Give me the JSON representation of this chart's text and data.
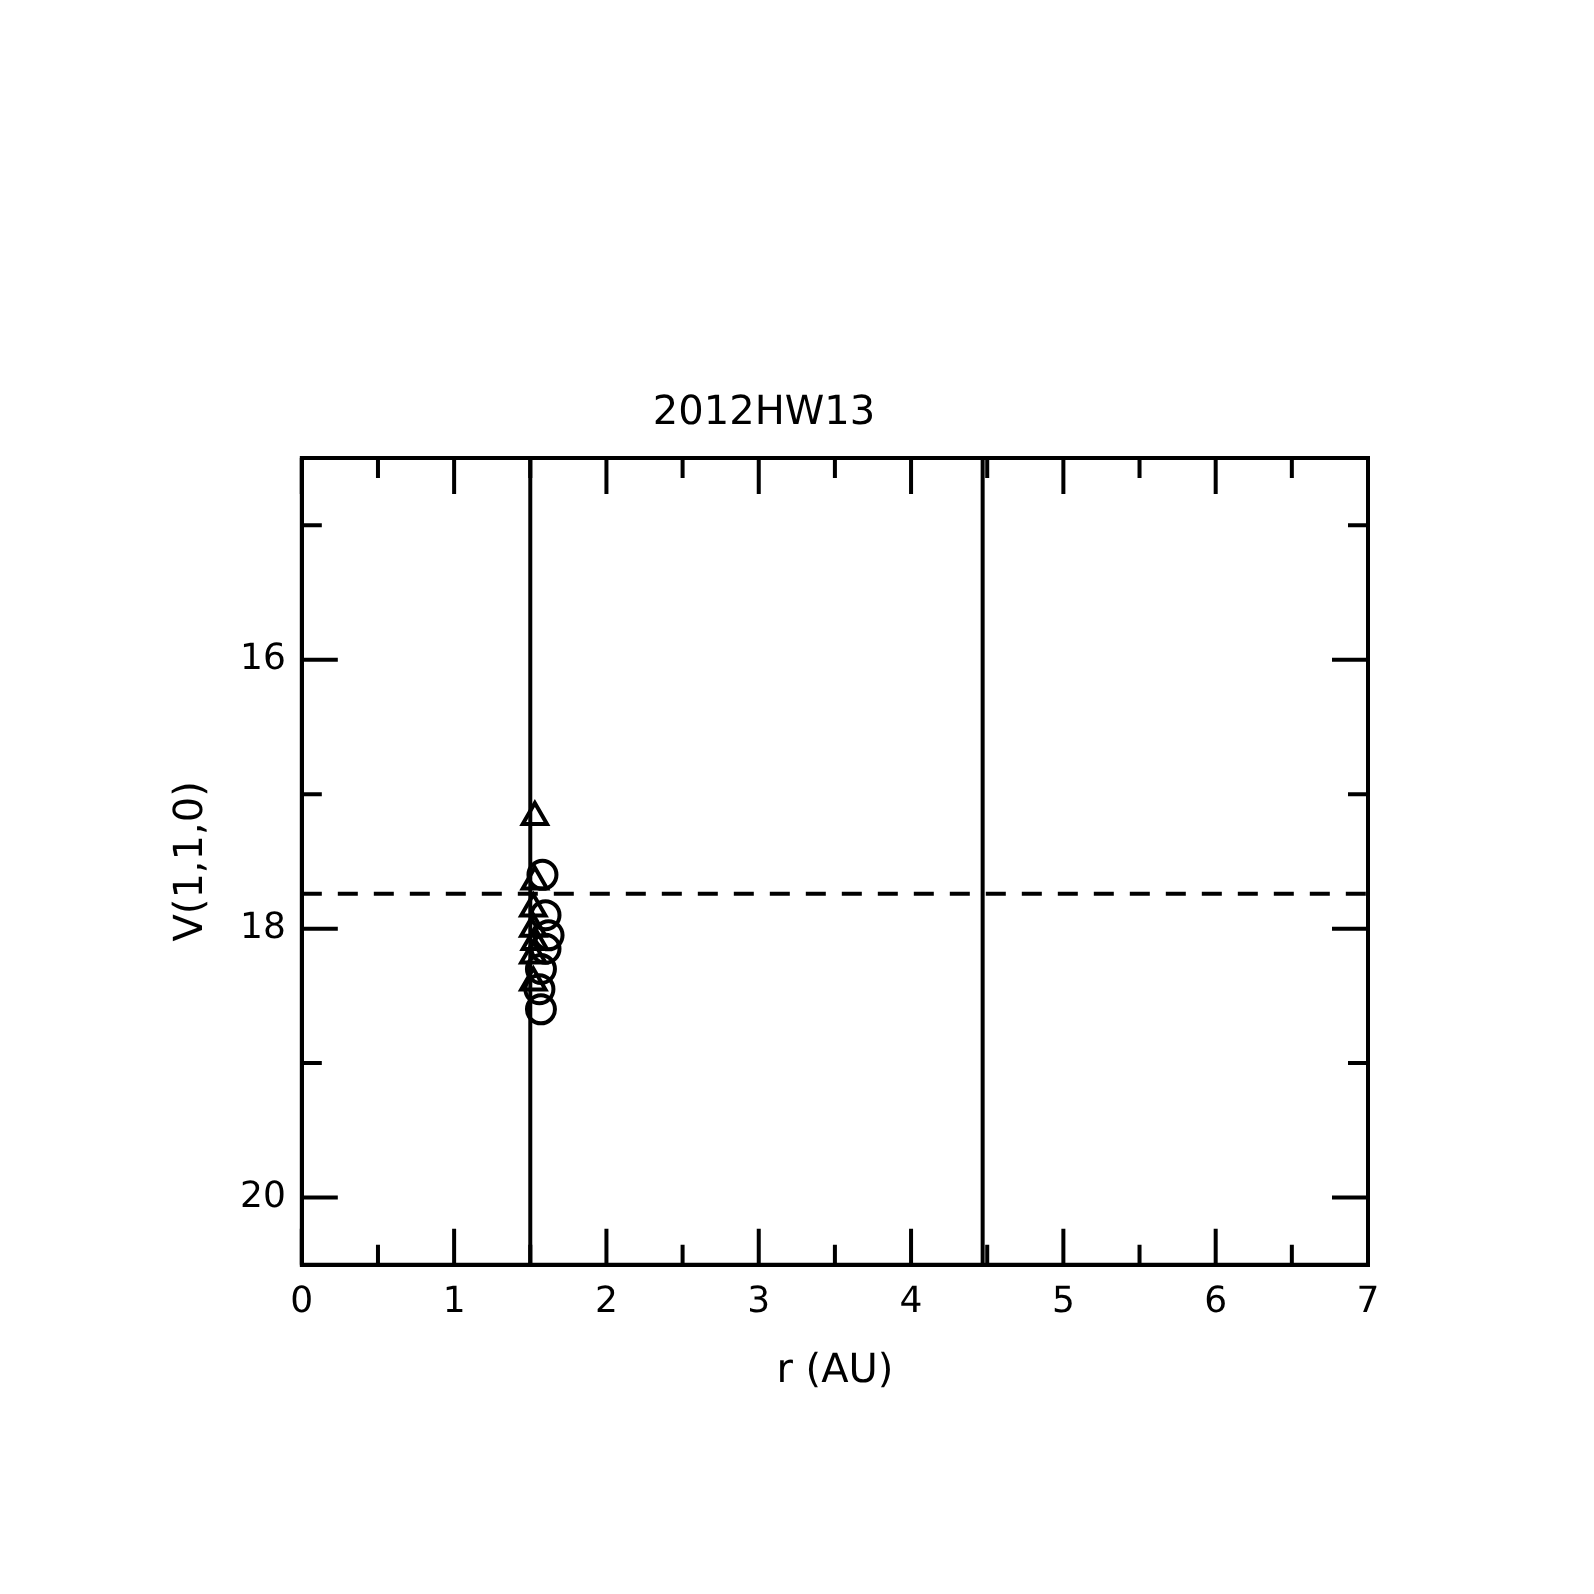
{
  "chart_data": {
    "type": "scatter",
    "title": "2012HW13",
    "xlabel": "r (AU)",
    "ylabel": "V(1,1,0)",
    "xlim": [
      0,
      7
    ],
    "xticks": [
      0,
      {
        "value": 0.5,
        "label": null
      },
      1,
      {
        "value": 1.5,
        "label": null
      },
      2,
      {
        "value": 2.5,
        "label": null
      },
      3,
      {
        "value": 3.5,
        "label": null
      },
      4,
      {
        "value": 4.5,
        "label": null
      },
      5,
      {
        "value": 5.5,
        "label": null
      },
      6,
      {
        "value": 6.5,
        "label": null
      },
      7
    ],
    "ylim": [
      20.5,
      14.5
    ],
    "yticks": [
      {
        "value": 15,
        "label": null
      },
      16,
      {
        "value": 17,
        "label": null
      },
      18,
      {
        "value": 19,
        "label": null
      },
      20
    ],
    "series": [
      {
        "color": "#000000",
        "marker": "triangle",
        "x": [
          1.53,
          1.53,
          1.52,
          1.52,
          1.53,
          1.52,
          1.52
        ],
        "values": [
          17.17,
          17.65,
          17.85,
          18.0,
          18.1,
          18.2,
          18.4
        ]
      },
      {
        "color": "#000000",
        "marker": "circle",
        "x": [
          1.58,
          1.6,
          1.62,
          1.6,
          1.57,
          1.56,
          1.57
        ],
        "values": [
          17.6,
          17.9,
          18.05,
          18.15,
          18.3,
          18.45,
          18.6
        ]
      }
    ],
    "ref_lines": [
      {
        "axis": "x",
        "value": 1.5,
        "line_style": "solid",
        "color": "#000000"
      },
      {
        "axis": "x",
        "value": 4.47,
        "line_style": "solid",
        "color": "#000000"
      },
      {
        "axis": "y",
        "value": 17.74,
        "line_style": "dashed",
        "color": "#000000"
      }
    ],
    "grid": false,
    "legend": false
  }
}
